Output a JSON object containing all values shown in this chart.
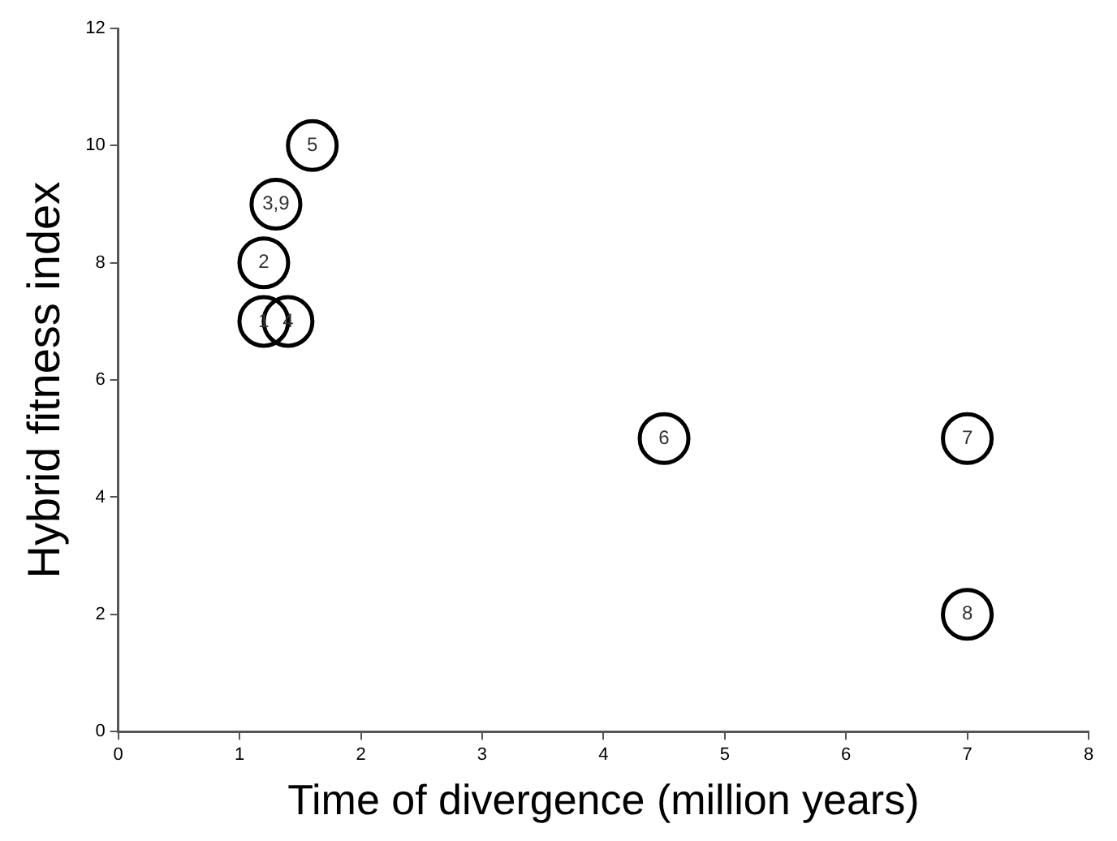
{
  "chart_data": {
    "type": "scatter",
    "xlabel": "Time of divergence (million years)",
    "ylabel": "Hybrid fitness index",
    "series": [
      {
        "color": "#000000",
        "x": [
          1.2,
          1.4,
          1.2,
          1.3,
          1.6,
          4.5,
          7,
          7
        ],
        "values": [
          7,
          7,
          8,
          9,
          10,
          5,
          5,
          2
        ]
      }
    ],
    "annotations": [
      {
        "text": "1",
        "x": 1.2,
        "y": 7
      },
      {
        "text": "4",
        "x": 1.4,
        "y": 7
      },
      {
        "text": "2",
        "x": 1.2,
        "y": 8
      },
      {
        "text": "3,9",
        "x": 1.3,
        "y": 9
      },
      {
        "text": "5",
        "x": 1.6,
        "y": 10
      },
      {
        "text": "6",
        "x": 4.5,
        "y": 5
      },
      {
        "text": "7",
        "x": 7,
        "y": 5
      },
      {
        "text": "8",
        "x": 7,
        "y": 2
      }
    ],
    "xlim": [
      0,
      8
    ],
    "xticks": [
      0,
      1,
      2,
      3,
      4,
      5,
      6,
      7,
      8
    ],
    "ylim": [
      0,
      12
    ],
    "yticks": [
      0,
      2,
      4,
      6,
      8,
      10,
      12
    ],
    "grid": false,
    "legend": false,
    "marker": "circle"
  }
}
